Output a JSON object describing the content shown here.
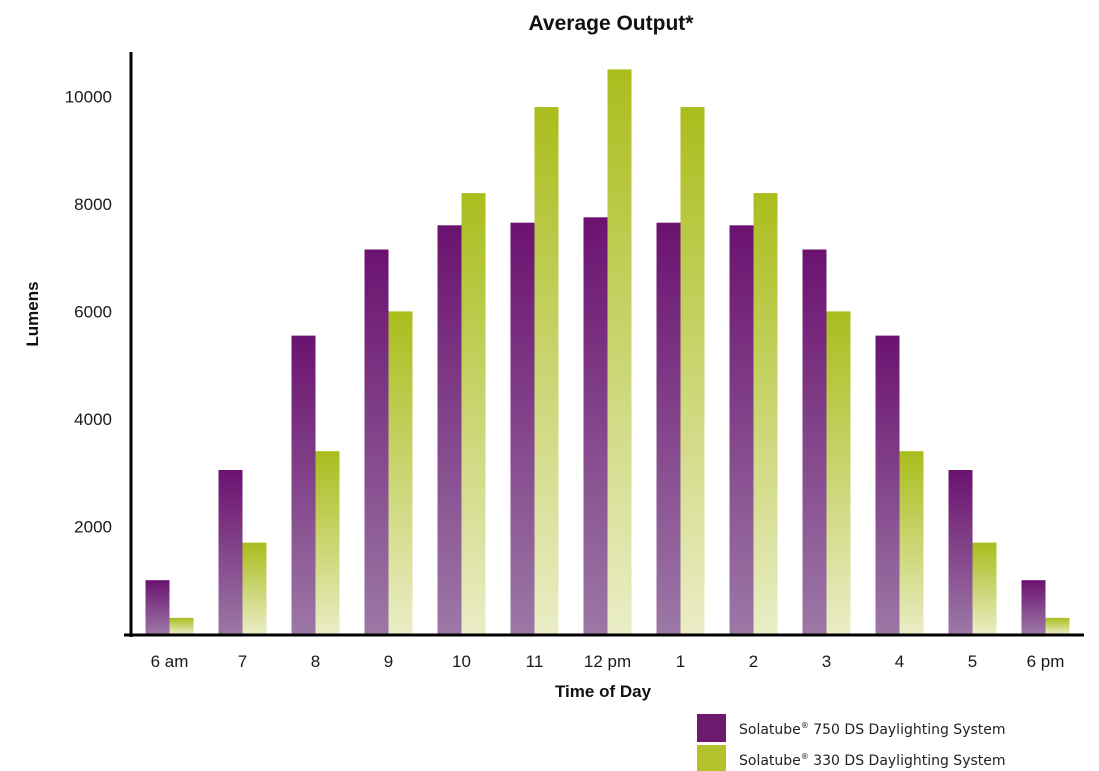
{
  "chart_data": {
    "type": "bar",
    "title": "Average Output*",
    "xlabel": "Time of Day",
    "ylabel": "Lumens",
    "categories": [
      "6 am",
      "7",
      "8",
      "9",
      "10",
      "11",
      "12 pm",
      "1",
      "2",
      "3",
      "4",
      "5",
      "6 pm"
    ],
    "yticks": [
      2000,
      4000,
      6000,
      8000,
      10000
    ],
    "ylim": [
      0,
      11000
    ],
    "grid": false,
    "legend_position": "bottom-right",
    "series": [
      {
        "name": "Solatube 750 DS Daylighting System",
        "name_parts": [
          "Solatube",
          "®",
          " 750 DS Daylighting System"
        ],
        "color": "#6b1a70",
        "values": [
          1000,
          3050,
          5550,
          7150,
          7600,
          7650,
          7750,
          7650,
          7600,
          7150,
          5550,
          3050,
          1000
        ]
      },
      {
        "name": "Solatube 330 DS Daylighting System",
        "name_parts": [
          "Solatube",
          "®",
          " 330 DS Daylighting System"
        ],
        "color": "#b2c22a",
        "values": [
          300,
          1700,
          3400,
          6000,
          8200,
          9800,
          10500,
          9800,
          8200,
          6000,
          3400,
          1700,
          300
        ]
      }
    ]
  }
}
